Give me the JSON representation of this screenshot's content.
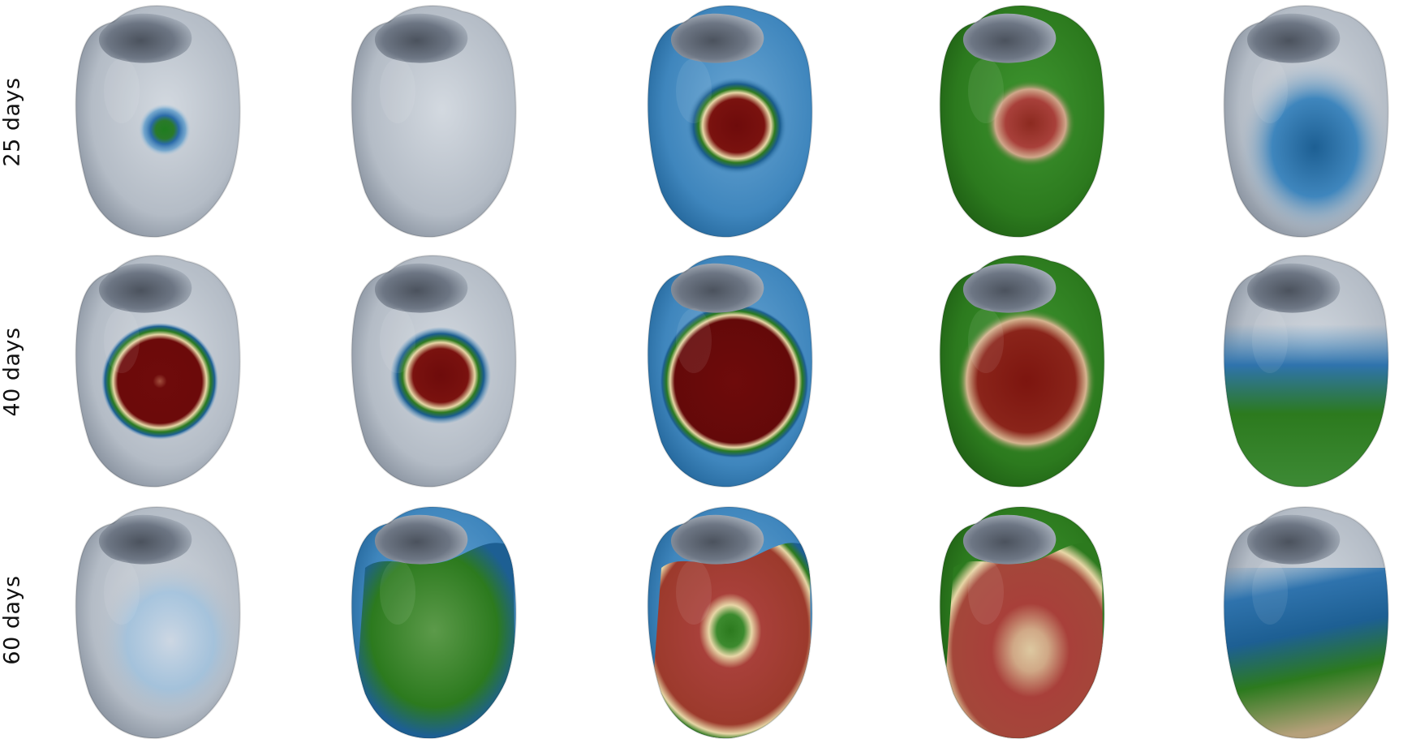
{
  "row_labels": [
    "25 days",
    "40 days",
    "60 days"
  ],
  "colors": {
    "background": "#ffffff",
    "tissue_gray": "#b4bcc6",
    "tissue_gray_dark": "#7c8694",
    "blue": "#3f86bd",
    "blue_dark": "#1d5f93",
    "green": "#2c7a1e",
    "green_dark": "#1c5a12",
    "red": "#6e0b0b",
    "red_mid": "#a8403a",
    "cream": "#e7d6a6"
  },
  "panels": [
    [
      {
        "base": "gray",
        "field": "spot-green"
      },
      {
        "base": "gray",
        "field": "none"
      },
      {
        "base": "blue",
        "field": "red-core"
      },
      {
        "base": "green",
        "field": "soft-red-core"
      },
      {
        "base": "gray",
        "field": "blue-wash"
      }
    ],
    [
      {
        "base": "gray",
        "field": "red-core-large"
      },
      {
        "base": "gray",
        "field": "red-core"
      },
      {
        "base": "blue",
        "field": "red-core-xl"
      },
      {
        "base": "green",
        "field": "soft-red-xl"
      },
      {
        "base": "gray",
        "field": "blue-green-wash"
      }
    ],
    [
      {
        "base": "gray",
        "field": "light-blue-wash"
      },
      {
        "base": "blue",
        "field": "green-fill"
      },
      {
        "base": "blue",
        "field": "red-ring-green-center"
      },
      {
        "base": "green",
        "field": "red-cream-fill"
      },
      {
        "base": "gray",
        "field": "blue-green-tan"
      }
    ]
  ]
}
